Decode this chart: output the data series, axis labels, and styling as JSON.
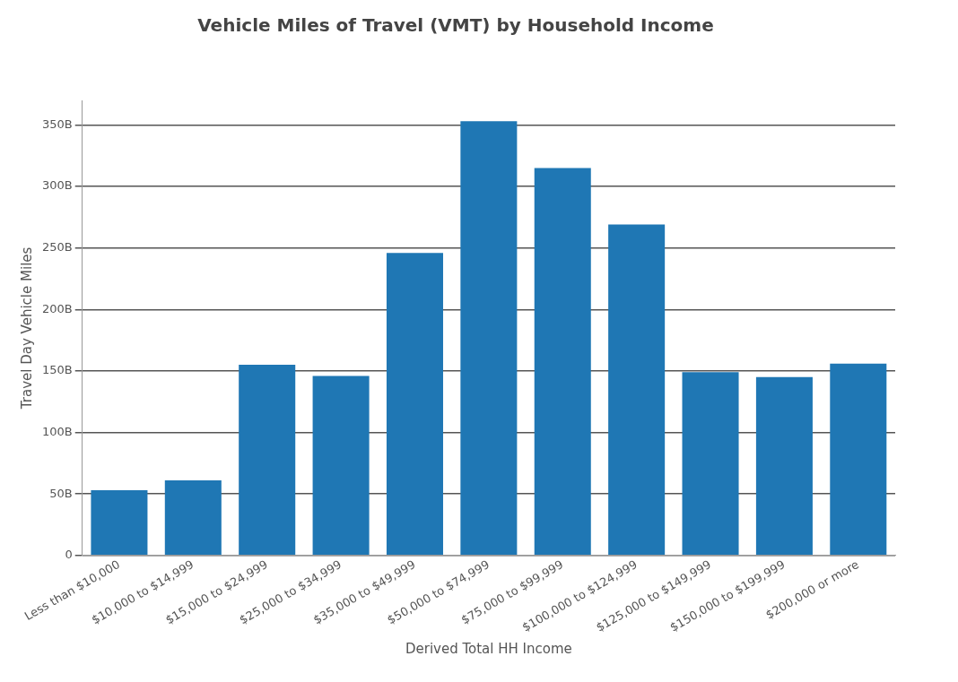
{
  "chart_data": {
    "type": "bar",
    "title": "Vehicle Miles of Travel (VMT) by Household Income",
    "xlabel": "Derived Total HH Income",
    "ylabel": "Travel Day Vehicle Miles",
    "categories": [
      "Less than $10,000",
      "$10,000 to $14,999",
      "$15,000 to $24,999",
      "$25,000 to $34,999",
      "$35,000 to $49,999",
      "$50,000 to $74,999",
      "$75,000 to $99,999",
      "$100,000 to $124,999",
      "$125,000 to $149,999",
      "$150,000 to $199,999",
      "$200,000 or more"
    ],
    "values": [
      53,
      61,
      155,
      146,
      246,
      353,
      315,
      269,
      149,
      145,
      156
    ],
    "color": "#1f77b4",
    "ylim": [
      0,
      370
    ],
    "yticks": [
      {
        "value": 0,
        "label": "0"
      },
      {
        "value": 50,
        "label": "50B"
      },
      {
        "value": 100,
        "label": "100B"
      },
      {
        "value": 150,
        "label": "150B"
      },
      {
        "value": 200,
        "label": "200B"
      },
      {
        "value": 250,
        "label": "250B"
      },
      {
        "value": 300,
        "label": "300B"
      },
      {
        "value": 350,
        "label": "350B"
      }
    ],
    "grid": "y",
    "legend": false
  }
}
